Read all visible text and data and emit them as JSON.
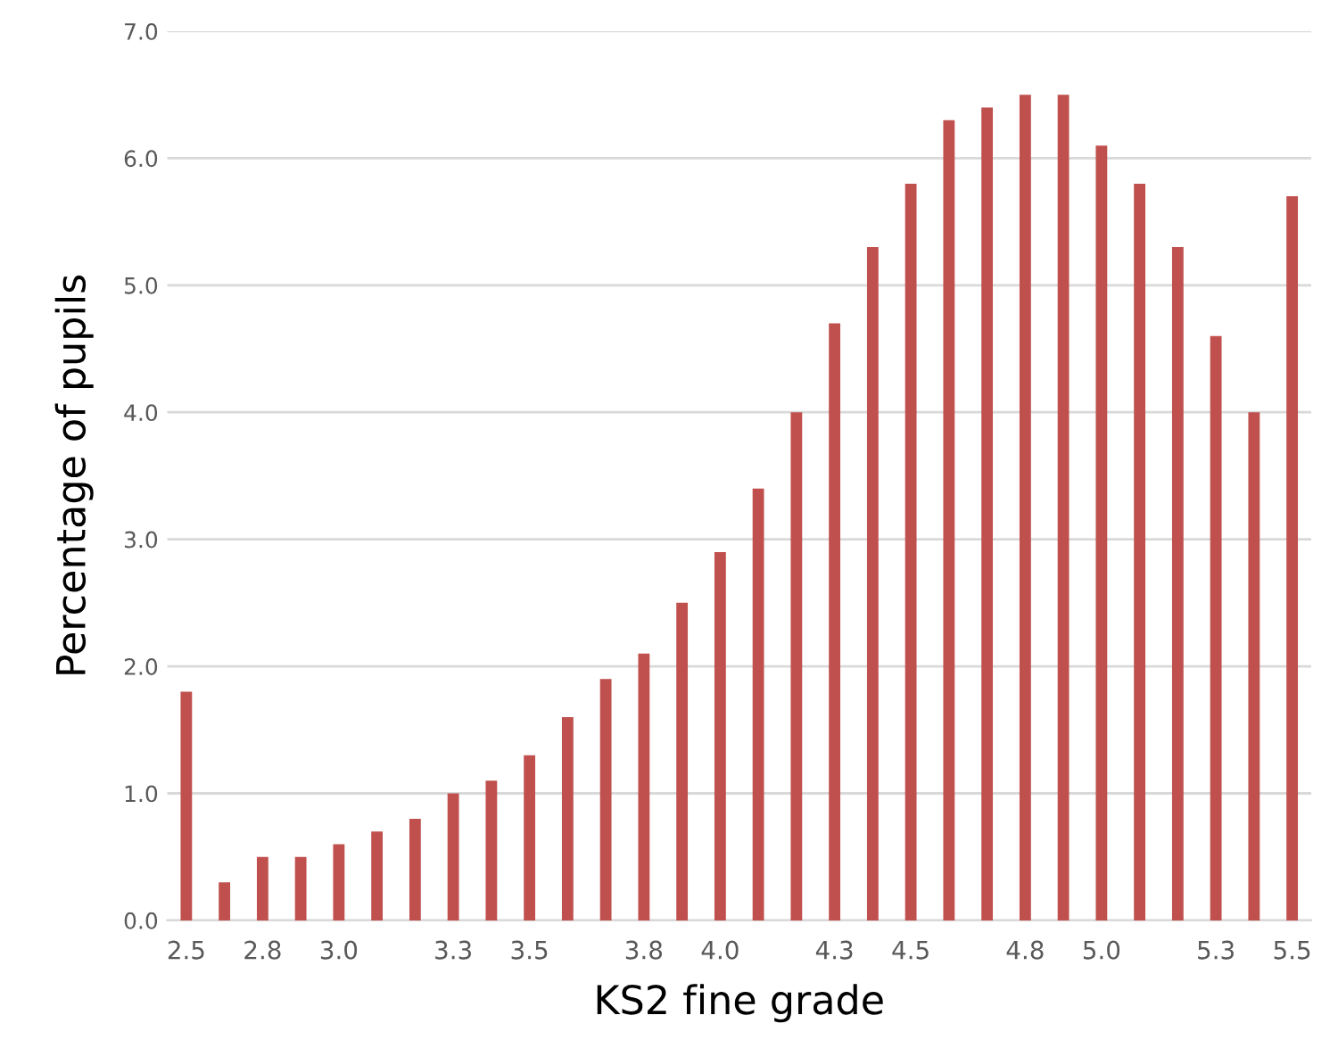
{
  "chart_data": {
    "type": "bar",
    "xlabel": "KS2 fine grade",
    "ylabel": "Percentage of pupils",
    "categories": [
      "2.5",
      null,
      "2.8",
      null,
      "3.0",
      null,
      null,
      "3.3",
      null,
      "3.5",
      null,
      null,
      "3.8",
      null,
      "4.0",
      null,
      null,
      "4.3",
      null,
      "4.5",
      null,
      null,
      "4.8",
      null,
      "5.0",
      null,
      null,
      "5.3",
      null,
      "5.5"
    ],
    "values": [
      1.8,
      0.3,
      0.5,
      0.5,
      0.6,
      0.7,
      0.8,
      1.0,
      1.1,
      1.3,
      1.6,
      1.9,
      2.1,
      2.5,
      2.9,
      3.4,
      4.0,
      4.7,
      5.3,
      5.8,
      6.3,
      6.4,
      6.5,
      6.5,
      6.1,
      5.8,
      5.3,
      4.6,
      4.0,
      5.7
    ],
    "color": "#c0504d",
    "ylim": [
      0,
      7
    ],
    "yticks": [
      {
        "value": 0,
        "label": "0.0"
      },
      {
        "value": 1,
        "label": "1.0"
      },
      {
        "value": 2,
        "label": "2.0"
      },
      {
        "value": 3,
        "label": "3.0"
      },
      {
        "value": 4,
        "label": "4.0"
      },
      {
        "value": 5,
        "label": "5.0"
      },
      {
        "value": 6,
        "label": "6.0"
      },
      {
        "value": 7,
        "label": "7.0"
      }
    ],
    "grid": "y"
  }
}
